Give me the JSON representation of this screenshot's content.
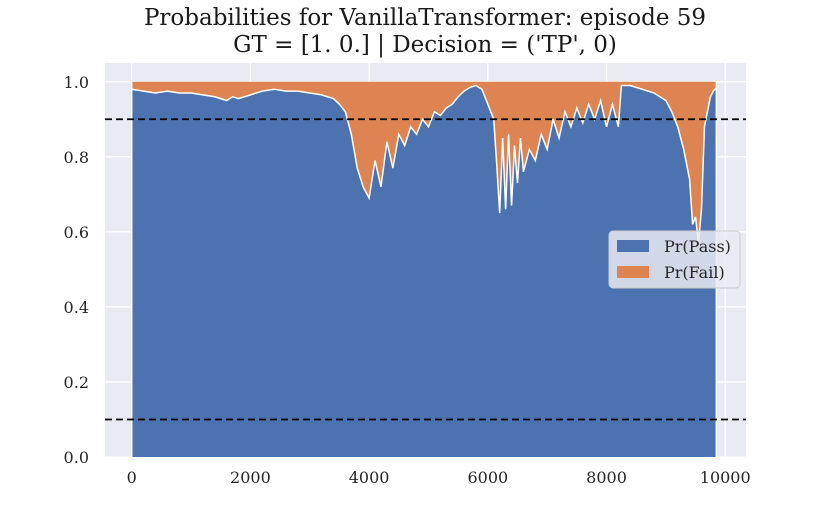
{
  "chart_data": {
    "type": "area",
    "stacked": true,
    "title": "Probabilities for VanillaTransformer: episode 59",
    "subtitle": "GT = [1. 0.] | Decision = ('TP', 0)",
    "xlabel": "",
    "ylabel": "",
    "xlim": [
      -450,
      10350
    ],
    "ylim": [
      0.0,
      1.05
    ],
    "x_ticks": [
      0,
      2000,
      4000,
      6000,
      8000,
      10000
    ],
    "y_ticks": [
      0.0,
      0.2,
      0.4,
      0.6,
      0.8,
      1.0
    ],
    "x_tick_labels": [
      "0",
      "2000",
      "4000",
      "6000",
      "8000",
      "10000"
    ],
    "y_tick_labels": [
      "0.0",
      "0.2",
      "0.4",
      "0.6",
      "0.8",
      "1.0"
    ],
    "grid": true,
    "legend_position": "center-right",
    "thresholds": [
      0.9,
      0.1
    ],
    "threshold_style": "dashed black",
    "x": [
      0,
      200,
      400,
      600,
      800,
      1000,
      1200,
      1400,
      1600,
      1700,
      1800,
      2000,
      2200,
      2400,
      2600,
      2800,
      3000,
      3200,
      3400,
      3500,
      3600,
      3700,
      3800,
      3900,
      4000,
      4100,
      4200,
      4300,
      4400,
      4500,
      4600,
      4700,
      4800,
      4900,
      5000,
      5100,
      5200,
      5300,
      5400,
      5500,
      5600,
      5700,
      5800,
      5900,
      6000,
      6100,
      6150,
      6200,
      6250,
      6300,
      6350,
      6400,
      6450,
      6500,
      6550,
      6600,
      6700,
      6800,
      6900,
      7000,
      7100,
      7200,
      7300,
      7400,
      7500,
      7600,
      7700,
      7800,
      7900,
      8000,
      8100,
      8200,
      8250,
      8300,
      8400,
      8500,
      8600,
      8700,
      8800,
      8900,
      9000,
      9100,
      9200,
      9300,
      9400,
      9450,
      9500,
      9550,
      9600,
      9650,
      9700,
      9750,
      9800,
      9850
    ],
    "series": [
      {
        "name": "Pr(Pass)",
        "color": "#4c72b0",
        "values": [
          0.98,
          0.975,
          0.97,
          0.975,
          0.97,
          0.97,
          0.965,
          0.96,
          0.95,
          0.96,
          0.955,
          0.965,
          0.975,
          0.98,
          0.975,
          0.975,
          0.97,
          0.965,
          0.955,
          0.94,
          0.92,
          0.86,
          0.77,
          0.72,
          0.69,
          0.79,
          0.72,
          0.84,
          0.77,
          0.86,
          0.83,
          0.88,
          0.86,
          0.9,
          0.88,
          0.92,
          0.91,
          0.93,
          0.94,
          0.96,
          0.975,
          0.985,
          0.99,
          0.98,
          0.94,
          0.9,
          0.78,
          0.65,
          0.85,
          0.66,
          0.86,
          0.67,
          0.83,
          0.73,
          0.85,
          0.76,
          0.82,
          0.79,
          0.86,
          0.82,
          0.9,
          0.85,
          0.92,
          0.88,
          0.93,
          0.89,
          0.94,
          0.9,
          0.95,
          0.88,
          0.94,
          0.88,
          0.99,
          0.99,
          0.99,
          0.985,
          0.98,
          0.975,
          0.97,
          0.96,
          0.95,
          0.92,
          0.88,
          0.82,
          0.74,
          0.62,
          0.64,
          0.57,
          0.66,
          0.88,
          0.92,
          0.96,
          0.975,
          0.985
        ]
      },
      {
        "name": "Pr(Fail)",
        "color": "#dd8452",
        "values": [
          0.02,
          0.025,
          0.03,
          0.025,
          0.03,
          0.03,
          0.035,
          0.04,
          0.05,
          0.04,
          0.045,
          0.035,
          0.025,
          0.02,
          0.025,
          0.025,
          0.03,
          0.035,
          0.045,
          0.06,
          0.08,
          0.14,
          0.23,
          0.28,
          0.31,
          0.21,
          0.28,
          0.16,
          0.23,
          0.14,
          0.17,
          0.12,
          0.14,
          0.1,
          0.12,
          0.08,
          0.09,
          0.07,
          0.06,
          0.04,
          0.025,
          0.015,
          0.01,
          0.02,
          0.06,
          0.1,
          0.22,
          0.35,
          0.15,
          0.34,
          0.14,
          0.33,
          0.17,
          0.27,
          0.15,
          0.24,
          0.18,
          0.21,
          0.14,
          0.18,
          0.1,
          0.15,
          0.08,
          0.12,
          0.07,
          0.11,
          0.06,
          0.1,
          0.05,
          0.12,
          0.06,
          0.12,
          0.01,
          0.01,
          0.01,
          0.015,
          0.02,
          0.025,
          0.03,
          0.04,
          0.05,
          0.08,
          0.12,
          0.18,
          0.26,
          0.38,
          0.36,
          0.43,
          0.34,
          0.12,
          0.08,
          0.04,
          0.025,
          0.015
        ]
      }
    ]
  }
}
